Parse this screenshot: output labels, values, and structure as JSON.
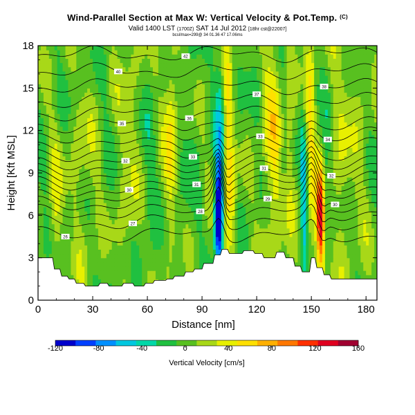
{
  "header": {
    "title": "Wind-Parallel Section at Max W: Vertical Velocity & Pot.Temp.",
    "copyright": "(C)",
    "valid_main": "Valid 1400 LST",
    "valid_utc": "(1700Z)",
    "valid_date": "SAT 14 Jul 2012",
    "forecast": "[18hr cst@22007]",
    "location": "bcsl/max=299@ 34 01.36 47 17.06ms"
  },
  "chart_data": {
    "type": "heatmap",
    "title": "Wind-Parallel Section at Max W: Vertical Velocity & Pot.Temp.",
    "xlabel": "Distance [nm]",
    "ylabel": "Height [Kft MSL]",
    "xlim": [
      0,
      186
    ],
    "ylim": [
      0,
      18
    ],
    "xticks": [
      0,
      30,
      60,
      90,
      120,
      150,
      180
    ],
    "yticks": [
      0,
      3,
      6,
      9,
      12,
      15,
      18
    ],
    "colorbar": {
      "label": "Vertical Velocity [cm/s]",
      "ticks": [
        -120,
        -80,
        -40,
        0,
        40,
        80,
        120,
        160
      ],
      "min": -120,
      "max": 160,
      "colors": [
        "#0000cc",
        "#0040ff",
        "#0090ff",
        "#00c8e0",
        "#00d8a8",
        "#20c040",
        "#58c020",
        "#a8d818",
        "#e8f000",
        "#ffe000",
        "#ffb000",
        "#ff7800",
        "#ff3000",
        "#e00020",
        "#a00030"
      ]
    },
    "terrain_kft": [
      [
        0,
        3.0
      ],
      [
        8,
        3.0
      ],
      [
        9,
        2.2
      ],
      [
        12,
        2.2
      ],
      [
        13,
        1.7
      ],
      [
        16,
        1.7
      ],
      [
        17,
        1.5
      ],
      [
        20,
        1.5
      ],
      [
        21,
        1.2
      ],
      [
        25,
        1.2
      ],
      [
        26,
        1.0
      ],
      [
        33,
        1.0
      ],
      [
        34,
        1.2
      ],
      [
        38,
        1.2
      ],
      [
        39,
        1.0
      ],
      [
        46,
        1.0
      ],
      [
        47,
        1.2
      ],
      [
        52,
        1.2
      ],
      [
        53,
        1.0
      ],
      [
        58,
        1.0
      ],
      [
        59,
        1.2
      ],
      [
        63,
        1.2
      ],
      [
        64,
        1.4
      ],
      [
        70,
        1.4
      ],
      [
        71,
        1.5
      ],
      [
        74,
        1.5
      ],
      [
        75,
        1.7
      ],
      [
        80,
        1.7
      ],
      [
        81,
        2.0
      ],
      [
        85,
        2.0
      ],
      [
        86,
        2.2
      ],
      [
        90,
        2.2
      ],
      [
        91,
        2.6
      ],
      [
        96,
        2.6
      ],
      [
        97,
        3.2
      ],
      [
        100,
        3.2
      ],
      [
        101,
        3.6
      ],
      [
        104,
        3.6
      ],
      [
        105,
        3.3
      ],
      [
        112,
        3.3
      ],
      [
        113,
        3.5
      ],
      [
        118,
        3.5
      ],
      [
        119,
        3.3
      ],
      [
        123,
        3.3
      ],
      [
        124,
        3.0
      ],
      [
        130,
        3.0
      ],
      [
        131,
        3.4
      ],
      [
        135,
        3.4
      ],
      [
        136,
        3.0
      ],
      [
        140,
        3.0
      ],
      [
        141,
        2.4
      ],
      [
        144,
        2.4
      ],
      [
        145,
        2.0
      ],
      [
        149,
        2.0
      ],
      [
        150,
        3.0
      ],
      [
        152,
        3.0
      ],
      [
        153,
        2.3
      ],
      [
        156,
        2.3
      ],
      [
        157,
        1.8
      ],
      [
        160,
        1.8
      ],
      [
        161,
        1.5
      ],
      [
        186,
        1.5
      ]
    ],
    "w_features": [
      {
        "x": 10,
        "y": 6.5,
        "sx": 2.5,
        "sy": 4,
        "w": 30
      },
      {
        "x": 25,
        "y": 9,
        "sx": 5,
        "sy": 5,
        "w": 20
      },
      {
        "x": 50,
        "y": 10,
        "sx": 4,
        "sy": 6,
        "w": 25
      },
      {
        "x": 60,
        "y": 8,
        "sx": 3,
        "sy": 5,
        "w": -12
      },
      {
        "x": 73,
        "y": 12,
        "sx": 2.5,
        "sy": 5,
        "w": 50
      },
      {
        "x": 80,
        "y": 9,
        "sx": 3,
        "sy": 6,
        "w": -10
      },
      {
        "x": 99,
        "y": 6,
        "sx": 1.5,
        "sy": 2.2,
        "w": -140
      },
      {
        "x": 100,
        "y": 11,
        "sx": 1.8,
        "sy": 5,
        "w": -45
      },
      {
        "x": 104,
        "y": 10,
        "sx": 1.8,
        "sy": 6,
        "w": 55
      },
      {
        "x": 107,
        "y": 7,
        "sx": 1.5,
        "sy": 3,
        "w": 30
      },
      {
        "x": 125,
        "y": 11,
        "sx": 2,
        "sy": 6,
        "w": 25
      },
      {
        "x": 130,
        "y": 12,
        "sx": 2.5,
        "sy": 6,
        "w": 45
      },
      {
        "x": 138,
        "y": 9,
        "sx": 2,
        "sy": 6,
        "w": 25
      },
      {
        "x": 146,
        "y": 8,
        "sx": 1.4,
        "sy": 5,
        "w": -65
      },
      {
        "x": 147,
        "y": 13,
        "sx": 1.5,
        "sy": 4,
        "w": 45
      },
      {
        "x": 150,
        "y": 9,
        "sx": 1.4,
        "sy": 7,
        "w": 45
      },
      {
        "x": 155,
        "y": 5.5,
        "sx": 1.8,
        "sy": 2.5,
        "w": 140
      },
      {
        "x": 158,
        "y": 7,
        "sx": 1.5,
        "sy": 3,
        "w": -35
      },
      {
        "x": 165,
        "y": 10,
        "sx": 4,
        "sy": 6,
        "w": 20
      },
      {
        "x": 175,
        "y": 12,
        "sx": 5,
        "sy": 6,
        "w": 15
      }
    ],
    "theta_levels_kft": [
      4.6,
      5.5,
      6.2,
      6.8,
      7.3,
      7.8,
      8.3,
      8.8,
      9.3,
      9.8,
      10.4,
      11.0,
      11.7,
      12.4,
      13.2,
      14.1,
      15.1,
      16.2,
      17.4
    ],
    "theta_labels": [
      "26",
      "27",
      "28",
      "29",
      "30",
      "30",
      "31",
      "31",
      "32",
      "32",
      "33",
      "33",
      "34",
      "35",
      "36",
      "37",
      "38",
      "40",
      "42"
    ]
  }
}
